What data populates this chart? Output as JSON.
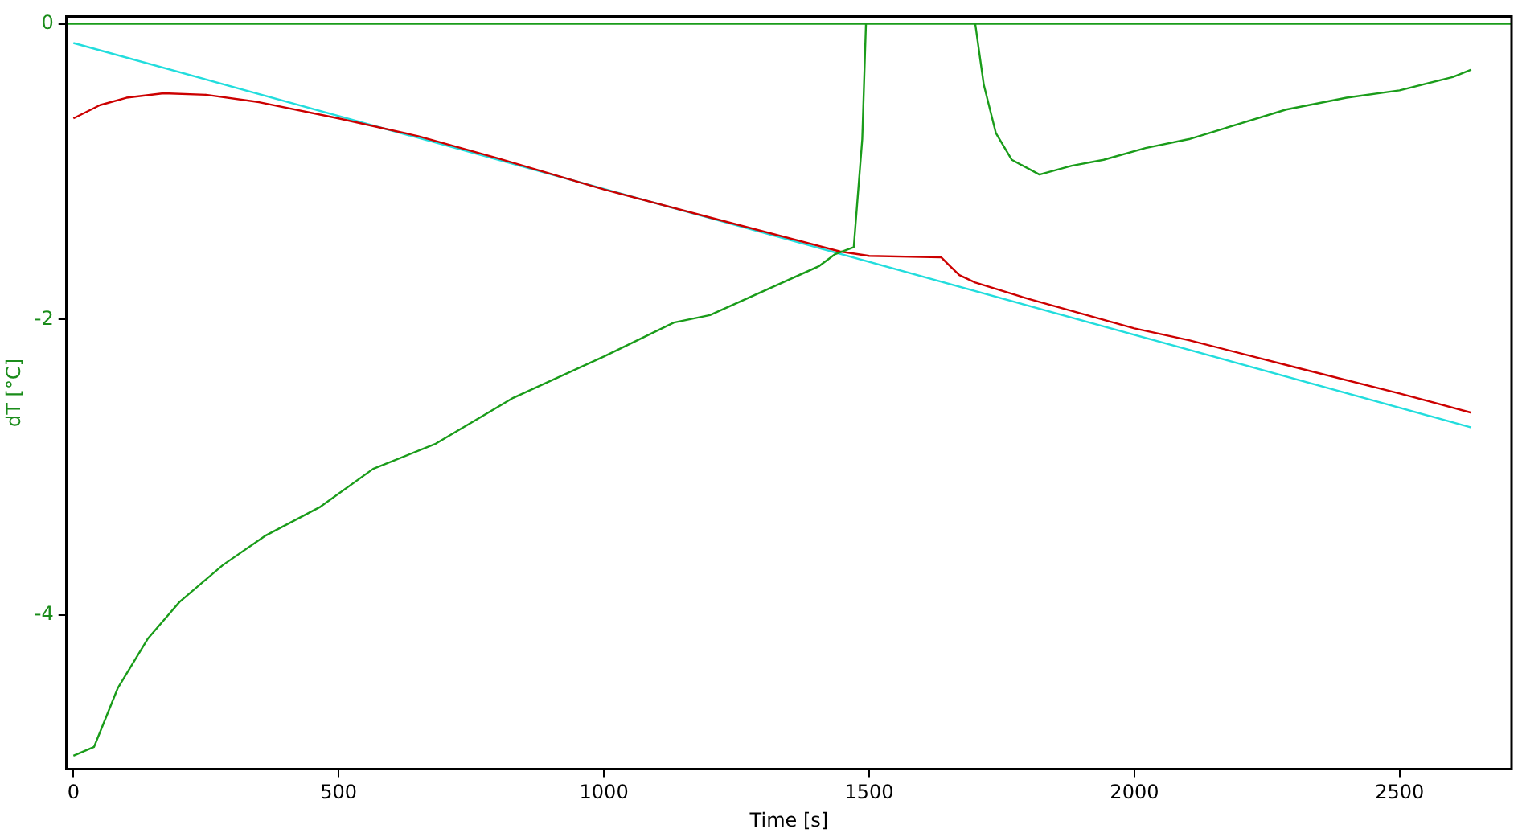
{
  "chart_data": {
    "type": "line",
    "xlabel": "Time [s]",
    "ylabel": "dT [°C]",
    "xlim": [
      -13,
      2711
    ],
    "ylim": [
      -5.04,
      0.05
    ],
    "xticks": [
      0,
      500,
      1000,
      1500,
      2000,
      2500
    ],
    "yticks": [
      0,
      -2,
      -4
    ],
    "grid": false,
    "legend": false,
    "marker": "none",
    "line_style": "solid",
    "ref_lines": [
      {
        "axis": "y",
        "value": 0,
        "color": "#1a9c1a"
      }
    ],
    "series": [
      {
        "color": "#1a9c1a",
        "x": [
          0,
          39,
          84,
          140,
          200,
          282,
          363,
          464,
          565,
          683,
          829,
          1000,
          1132,
          1200,
          1405,
          1435,
          1471,
          1487,
          1494,
          1495,
          1699,
          1700,
          1716,
          1739,
          1769,
          1821,
          1882,
          1942,
          2021,
          2103,
          2286,
          2400,
          2500,
          2600,
          2635
        ],
        "values": [
          -4.95,
          -4.89,
          -4.49,
          -4.16,
          -3.91,
          -3.66,
          -3.46,
          -3.27,
          -3.01,
          -2.84,
          -2.53,
          -2.25,
          -2.02,
          -1.97,
          -1.64,
          -1.56,
          -1.51,
          -0.78,
          0,
          null,
          null,
          0,
          -0.41,
          -0.74,
          -0.92,
          -1.02,
          -0.96,
          -0.92,
          -0.84,
          -0.78,
          -0.58,
          -0.5,
          -0.45,
          -0.36,
          -0.31
        ]
      },
      {
        "color": "#cc0000",
        "x": [
          0,
          50,
          100,
          170,
          250,
          350,
          500,
          650,
          800,
          1000,
          1200,
          1445,
          1500,
          1636,
          1650,
          1670,
          1700,
          1800,
          2000,
          2103,
          2300,
          2500,
          2635
        ],
        "values": [
          -0.64,
          -0.55,
          -0.5,
          -0.47,
          -0.48,
          -0.53,
          -0.64,
          -0.76,
          -0.91,
          -1.12,
          -1.31,
          -1.54,
          -1.57,
          -1.58,
          -1.63,
          -1.7,
          -1.75,
          -1.86,
          -2.06,
          -2.14,
          -2.32,
          -2.5,
          -2.63
        ]
      },
      {
        "color": "#22dddd",
        "x": [
          0,
          2635
        ],
        "values": [
          -0.13,
          -2.73
        ]
      }
    ]
  }
}
